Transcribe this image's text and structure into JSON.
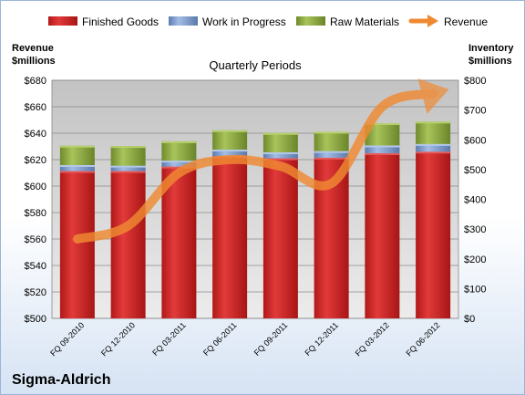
{
  "company": "Sigma-Aldrich",
  "chart_data": {
    "type": "bar",
    "subtitle": "Quarterly Periods",
    "categories": [
      "FQ 09-2010",
      "FQ 12-2010",
      "FQ 03-2011",
      "FQ 06-2011",
      "FQ 09-2011",
      "FQ 12-2011",
      "FQ 03-2012",
      "FQ 06-2012"
    ],
    "stacked": true,
    "series": [
      {
        "name": "Finished Goods",
        "color": "#d42a2a",
        "values": [
          495,
          495,
          510,
          545,
          538,
          540,
          555,
          560
        ]
      },
      {
        "name": "Work in Progress",
        "color": "#7b9ccf",
        "values": [
          20,
          18,
          20,
          22,
          20,
          22,
          26,
          26
        ]
      },
      {
        "name": "Raw Materials",
        "color": "#8fac43",
        "values": [
          65,
          66,
          65,
          65,
          65,
          65,
          75,
          75
        ]
      }
    ],
    "line_series": {
      "name": "Revenue",
      "color": "#f08a32",
      "values": [
        560,
        570,
        610,
        620,
        615,
        602,
        660,
        670
      ]
    },
    "y_left": {
      "label": "Revenue\n$millions",
      "min": 500,
      "max": 680,
      "step": 20,
      "ticks": [
        "$500",
        "$520",
        "$540",
        "$560",
        "$580",
        "$600",
        "$620",
        "$640",
        "$660",
        "$680"
      ]
    },
    "y_right": {
      "label": "Inventory\n$millions",
      "min": 0,
      "max": 800,
      "step": 100,
      "ticks": [
        "$0",
        "$100",
        "$200",
        "$300",
        "$400",
        "$500",
        "$600",
        "$700",
        "$800"
      ]
    },
    "grid": true,
    "legend": "top"
  }
}
